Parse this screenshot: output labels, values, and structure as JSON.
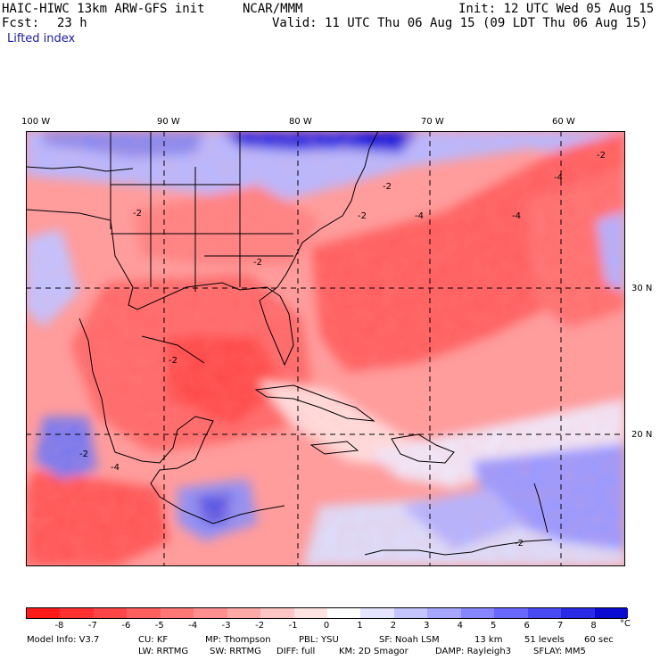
{
  "header": {
    "model": "HAIC-HIWC 13km ARW-GFS init",
    "org": "NCAR/MMM",
    "init": "Init: 12 UTC Wed 05 Aug 15",
    "fcst_label": "Fcst:",
    "fcst_value": "23 h",
    "valid": "Valid: 11 UTC Thu 06 Aug 15 (09 LDT Thu 06 Aug 15)",
    "field": "Lifted index"
  },
  "map": {
    "lon_labels": [
      "100 W",
      "90 W",
      "80 W",
      "70 W",
      "60 W"
    ],
    "lat_labels": [
      "30 N",
      "20 N"
    ],
    "contour_labels": [
      "-2",
      "-2",
      "-2",
      "-2",
      "-4",
      "-4",
      "-4",
      "-2",
      "-2",
      "-2",
      "-4",
      "-2"
    ]
  },
  "colorbar": {
    "ticks": [
      "-8",
      "-7",
      "-6",
      "-5",
      "-4",
      "-3",
      "-2",
      "-1",
      "0",
      "1",
      "2",
      "3",
      "4",
      "5",
      "6",
      "7",
      "8"
    ],
    "unit": "°C",
    "colors": [
      "#ff1a1a",
      "#ff3030",
      "#ff4646",
      "#ff5f5f",
      "#ff7676",
      "#ff8e8e",
      "#ffa8a8",
      "#ffc4c4",
      "#ffe2e2",
      "#ffffff",
      "#e4e4ff",
      "#c4c4ff",
      "#a6a6ff",
      "#8686ff",
      "#6868ff",
      "#4a4af5",
      "#2a2ae6",
      "#0a0ad0"
    ]
  },
  "model_info": {
    "line1": [
      "Model Info: V3.7",
      "CU: KF",
      "MP: Thompson",
      "PBL: YSU",
      "SF: Noah LSM",
      "13 km",
      "51 levels",
      "60 sec"
    ],
    "line2": [
      "LW: RRTMG",
      "SW: RRTMG",
      "DIFF: full",
      "KM: 2D Smagor",
      "DAMP: Rayleigh3",
      "SFLAY: MM5"
    ]
  }
}
